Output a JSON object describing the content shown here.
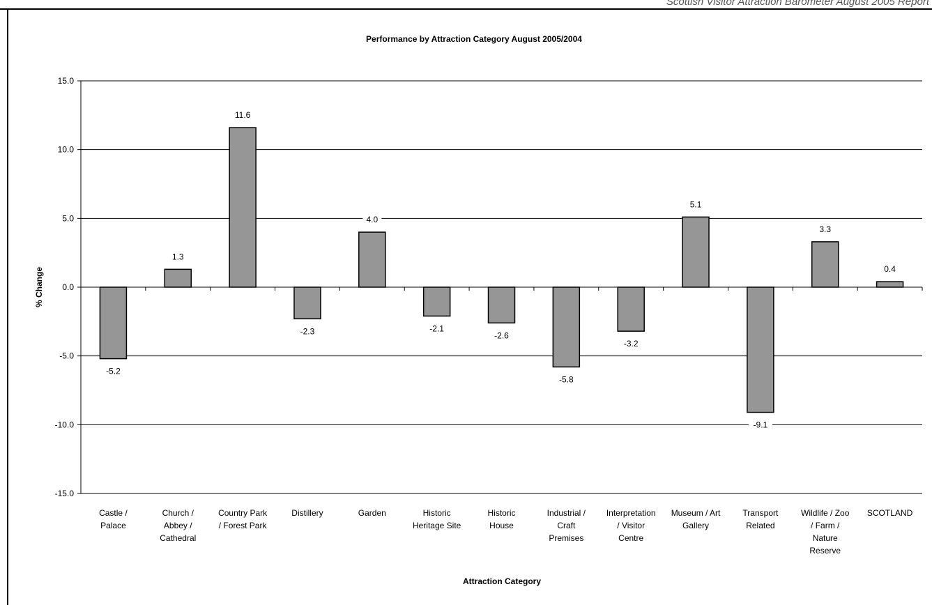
{
  "page": {
    "header": "Scottish Visitor Attraction Barometer August 2005 Report"
  },
  "chart_data": {
    "type": "bar",
    "title": "Performance by Attraction Category August 2005/2004",
    "xlabel": "Attraction Category",
    "ylabel": "% Change",
    "ylim": [
      -15,
      15
    ],
    "yticks": [
      "15.0",
      "10.0",
      "5.0",
      "0.0",
      "-5.0",
      "-10.0",
      "-15.0"
    ],
    "grid": true,
    "bar_color": "#969696",
    "categories": [
      [
        "Castle /",
        "Palace"
      ],
      [
        "Church /",
        "Abbey /",
        "Cathedral"
      ],
      [
        "Country Park",
        "/ Forest Park"
      ],
      [
        "Distillery"
      ],
      [
        "Garden"
      ],
      [
        "Historic",
        "Heritage Site"
      ],
      [
        "Historic",
        "House"
      ],
      [
        "Industrial /",
        "Craft",
        "Premises"
      ],
      [
        "Interpretation",
        "/ Visitor",
        "Centre"
      ],
      [
        "Museum / Art",
        "Gallery"
      ],
      [
        "Transport",
        "Related"
      ],
      [
        "Wildlife / Zoo",
        "/ Farm /",
        "Nature",
        "Reserve"
      ],
      [
        "SCOTLAND"
      ]
    ],
    "values": [
      -5.2,
      1.3,
      11.6,
      -2.3,
      4.0,
      -2.1,
      -2.6,
      -5.8,
      -3.2,
      5.1,
      -9.1,
      3.3,
      0.4
    ],
    "value_labels": [
      "-5.2",
      "1.3",
      "11.6",
      "-2.3",
      "4.0",
      "-2.1",
      "-2.6",
      "-5.8",
      "-3.2",
      "5.1",
      "-9.1",
      "3.3",
      "0.4"
    ]
  }
}
